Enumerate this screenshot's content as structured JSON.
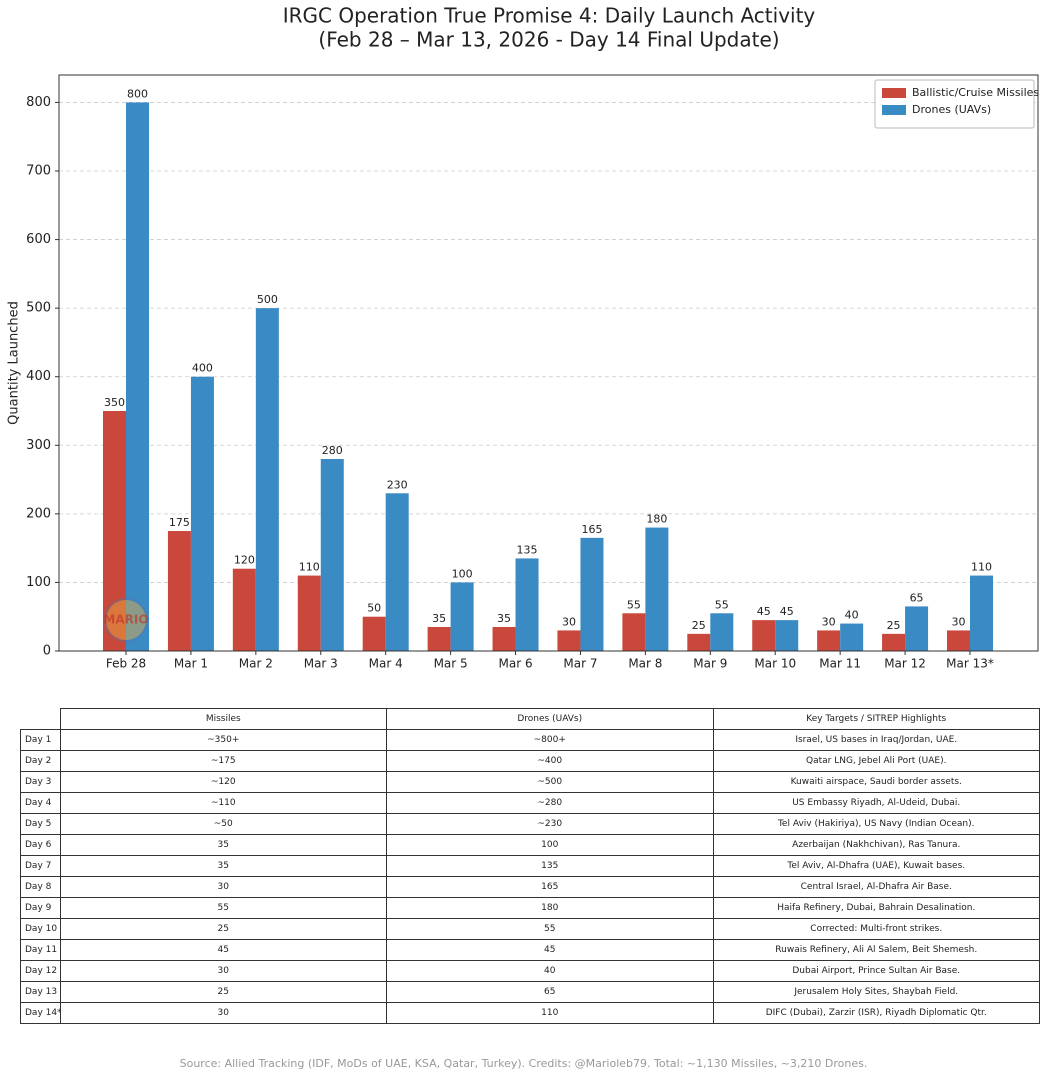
{
  "chart_data": {
    "type": "bar",
    "title": "IRGC Operation True Promise 4: Daily Launch Activity",
    "subtitle": "(Feb 28 – Mar 13, 2026 - Day 14 Final Update)",
    "y_label": "Quantity Launched",
    "watermark": "MARIO",
    "categories": [
      "Feb 28",
      "Mar 1",
      "Mar 2",
      "Mar 3",
      "Mar 4",
      "Mar 5",
      "Mar 6",
      "Mar 7",
      "Mar 8",
      "Mar 9",
      "Mar 10",
      "Mar 11",
      "Mar 12",
      "Mar 13*"
    ],
    "series": [
      {
        "name": "Ballistic/Cruise Missiles",
        "color": "#c9483b",
        "values": [
          350,
          175,
          120,
          110,
          50,
          35,
          35,
          30,
          55,
          25,
          45,
          30,
          25,
          30
        ]
      },
      {
        "name": "Drones (UAVs)",
        "color": "#3a8ac4",
        "values": [
          800,
          400,
          500,
          280,
          230,
          100,
          135,
          165,
          180,
          55,
          45,
          40,
          65,
          110
        ]
      }
    ],
    "ylim": [
      0,
      840
    ],
    "yticks": [
      0,
      100,
      200,
      300,
      400,
      500,
      600,
      700,
      800
    ],
    "grid": true,
    "legend": "upper right"
  },
  "table": {
    "columns": [
      "Missiles",
      "Drones (UAVs)",
      "Key Targets / SITREP Highlights"
    ],
    "rows": [
      [
        "Day 1",
        "~350+",
        "~800+",
        "Israel, US bases in Iraq/Jordan, UAE."
      ],
      [
        "Day 2",
        "~175",
        "~400",
        "Qatar LNG, Jebel Ali Port (UAE)."
      ],
      [
        "Day 3",
        "~120",
        "~500",
        "Kuwaiti airspace, Saudi border assets."
      ],
      [
        "Day 4",
        "~110",
        "~280",
        "US Embassy Riyadh, Al-Udeid, Dubai."
      ],
      [
        "Day 5",
        "~50",
        "~230",
        "Tel Aviv (Hakiriya), US Navy (Indian Ocean)."
      ],
      [
        "Day 6",
        "35",
        "100",
        "Azerbaijan (Nakhchivan), Ras Tanura."
      ],
      [
        "Day 7",
        "35",
        "135",
        "Tel Aviv, Al-Dhafra (UAE), Kuwait bases."
      ],
      [
        "Day 8",
        "30",
        "165",
        "Central Israel, Al-Dhafra Air Base."
      ],
      [
        "Day 9",
        "55",
        "180",
        "Haifa Refinery, Dubai, Bahrain Desalination."
      ],
      [
        "Day 10",
        "25",
        "55",
        "Corrected: Multi-front strikes."
      ],
      [
        "Day 11",
        "45",
        "45",
        "Ruwais Refinery, Ali Al Salem, Beit Shemesh."
      ],
      [
        "Day 12",
        "30",
        "40",
        "Dubai Airport, Prince Sultan Air Base."
      ],
      [
        "Day 13",
        "25",
        "65",
        "Jerusalem Holy Sites, Shaybah Field."
      ],
      [
        "Day 14*",
        "30",
        "110",
        "DIFC (Dubai), Zarzir (ISR), Riyadh Diplomatic Qtr."
      ]
    ]
  },
  "footer": "Source: Allied Tracking (IDF, MoDs of UAE, KSA, Qatar, Turkey). Credits: @Marioleb79. Total: ~1,130 Missiles, ~3,210 Drones."
}
